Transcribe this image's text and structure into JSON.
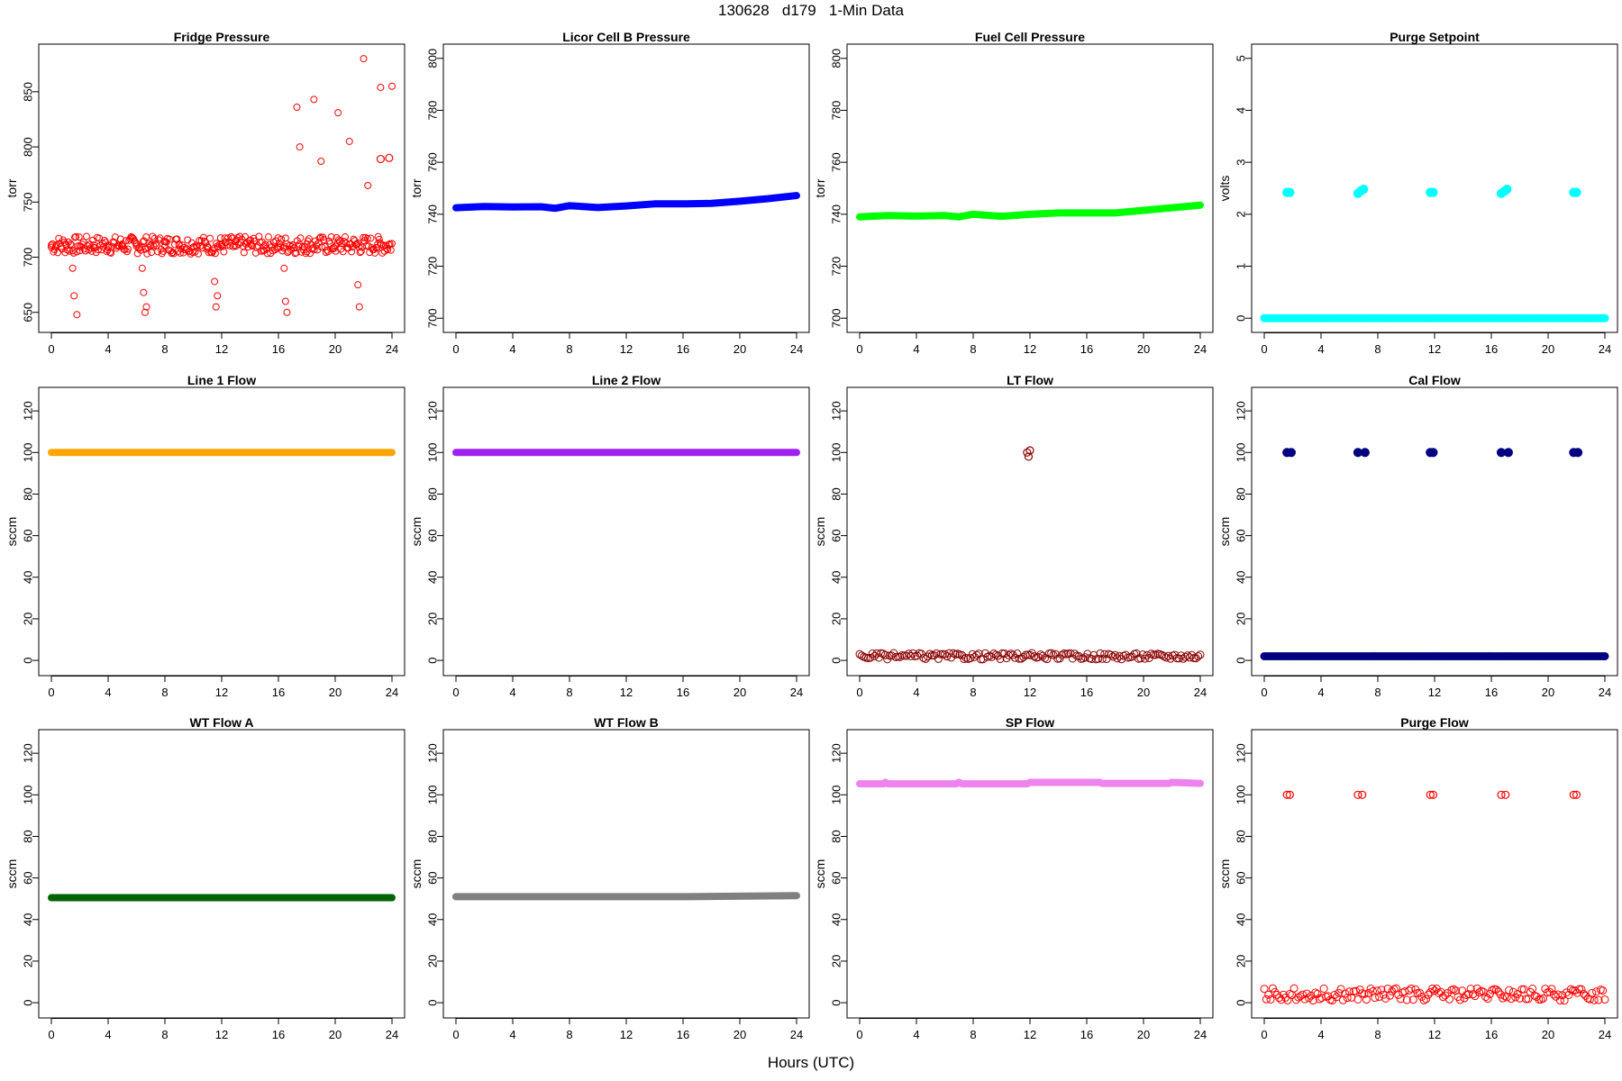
{
  "page": {
    "title": "130628   d179   1-Min Data",
    "xlabel": "Hours (UTC)"
  },
  "chart_data": [
    {
      "type": "scatter",
      "title": "Fridge Pressure",
      "ylabel": "torr",
      "xlim": [
        0,
        24
      ],
      "ylim": [
        640,
        885
      ],
      "xticks": [
        0,
        4,
        8,
        12,
        16,
        20,
        24
      ],
      "yticks": [
        650,
        700,
        750,
        800,
        850
      ],
      "color": "#FF0000",
      "marker": "open",
      "series": [
        {
          "x": [
            0,
            1,
            1.5,
            1.6,
            1.8,
            2,
            3,
            4,
            5,
            6,
            6.4,
            6.5,
            6.6,
            6.7,
            7,
            8,
            9,
            10,
            11,
            11.5,
            11.6,
            11.7,
            12,
            13,
            14,
            15,
            16,
            16.4,
            16.5,
            16.6,
            17,
            17.3,
            17.5,
            18,
            18.5,
            19,
            20,
            20.2,
            21,
            21.5,
            21.6,
            21.7,
            22,
            22.3,
            23,
            23.2,
            24
          ],
          "y": [
            709,
            712,
            690,
            665,
            648,
            710,
            711,
            709,
            712,
            710,
            690,
            668,
            650,
            655,
            711,
            710,
            712,
            709,
            710,
            678,
            655,
            665,
            711,
            710,
            712,
            710,
            709,
            690,
            660,
            650,
            711,
            836,
            800,
            712,
            843,
            787,
            710,
            831,
            805,
            712,
            675,
            655,
            880,
            765,
            712,
            854,
            855
          ]
        },
        {
          "x": [
            23.2,
            23.8
          ],
          "y": [
            789,
            790
          ]
        }
      ]
    },
    {
      "type": "line",
      "title": "Licor Cell B Pressure",
      "ylabel": "torr",
      "xlim": [
        0,
        24
      ],
      "ylim": [
        698,
        802
      ],
      "xticks": [
        0,
        4,
        8,
        12,
        16,
        20,
        24
      ],
      "yticks": [
        700,
        720,
        740,
        760,
        780,
        800
      ],
      "color": "#0000FF",
      "series": [
        {
          "x": [
            0,
            2,
            4,
            6,
            7,
            8,
            10,
            12,
            14,
            16,
            18,
            20,
            22,
            24
          ],
          "y": [
            742.5,
            743,
            742.8,
            742.9,
            742.3,
            743.3,
            742.6,
            743.2,
            744,
            744,
            744.2,
            745,
            746,
            747.2
          ]
        }
      ]
    },
    {
      "type": "line",
      "title": "Fuel Cell Pressure",
      "ylabel": "torr",
      "xlim": [
        0,
        24
      ],
      "ylim": [
        698,
        802
      ],
      "xticks": [
        0,
        4,
        8,
        12,
        16,
        20,
        24
      ],
      "yticks": [
        700,
        720,
        740,
        760,
        780,
        800
      ],
      "color": "#00FF00",
      "series": [
        {
          "x": [
            0,
            2,
            4,
            6,
            7,
            8,
            10,
            12,
            14,
            16,
            18,
            20,
            22,
            24
          ],
          "y": [
            739,
            739.5,
            739.3,
            739.5,
            739,
            740,
            739.2,
            740,
            740.5,
            740.5,
            740.5,
            741.5,
            742.5,
            743.5
          ]
        }
      ]
    },
    {
      "type": "scatter",
      "title": "Purge Setpoint",
      "ylabel": "volts",
      "xlim": [
        0,
        24
      ],
      "ylim": [
        -0.1,
        5.1
      ],
      "xticks": [
        0,
        4,
        8,
        12,
        16,
        20,
        24
      ],
      "yticks": [
        0,
        1,
        2,
        3,
        4,
        5
      ],
      "color": "#00FFFF",
      "series": [
        {
          "x": [
            0,
            24
          ],
          "y": [
            0,
            0
          ]
        },
        {
          "x": [
            1.6,
            1.8,
            6.6,
            6.8,
            7,
            11.7,
            11.9,
            16.7,
            16.9,
            17.1,
            21.8,
            22
          ],
          "y": [
            2.42,
            2.42,
            2.4,
            2.45,
            2.48,
            2.42,
            2.42,
            2.4,
            2.44,
            2.48,
            2.42,
            2.42
          ]
        }
      ]
    },
    {
      "type": "line",
      "title": "Line 1 Flow",
      "ylabel": "sccm",
      "xlim": [
        0,
        24
      ],
      "ylim": [
        -3,
        127
      ],
      "xticks": [
        0,
        4,
        8,
        12,
        16,
        20,
        24
      ],
      "yticks": [
        0,
        20,
        40,
        60,
        80,
        100,
        120
      ],
      "color": "#FFA500",
      "series": [
        {
          "x": [
            0,
            24
          ],
          "y": [
            100,
            100
          ]
        }
      ]
    },
    {
      "type": "line",
      "title": "Line 2 Flow",
      "ylabel": "sccm",
      "xlim": [
        0,
        24
      ],
      "ylim": [
        -3,
        127
      ],
      "xticks": [
        0,
        4,
        8,
        12,
        16,
        20,
        24
      ],
      "yticks": [
        0,
        20,
        40,
        60,
        80,
        100,
        120
      ],
      "color": "#A020F0",
      "series": [
        {
          "x": [
            0,
            24
          ],
          "y": [
            100,
            100
          ]
        }
      ]
    },
    {
      "type": "scatter",
      "title": "LT Flow",
      "ylabel": "sccm",
      "xlim": [
        0,
        24
      ],
      "ylim": [
        -3,
        127
      ],
      "xticks": [
        0,
        4,
        8,
        12,
        16,
        20,
        24
      ],
      "yticks": [
        0,
        20,
        40,
        60,
        80,
        100,
        120
      ],
      "color": "#8B0000",
      "marker": "open",
      "series": [
        {
          "x": [
            0,
            24
          ],
          "y": [
            2,
            2
          ]
        },
        {
          "x": [
            11.8,
            11.9,
            12
          ],
          "y": [
            100,
            98,
            101
          ]
        }
      ]
    },
    {
      "type": "scatter",
      "title": "Cal Flow",
      "ylabel": "sccm",
      "xlim": [
        0,
        24
      ],
      "ylim": [
        -3,
        127
      ],
      "xticks": [
        0,
        4,
        8,
        12,
        16,
        20,
        24
      ],
      "yticks": [
        0,
        20,
        40,
        60,
        80,
        100,
        120
      ],
      "color": "#000080",
      "series": [
        {
          "x": [
            0,
            24
          ],
          "y": [
            2,
            2
          ]
        },
        {
          "x": [
            1.6,
            1.9,
            6.6,
            7.1,
            11.7,
            11.9,
            16.7,
            17.2,
            21.8,
            22.1
          ],
          "y": [
            100,
            100,
            100,
            100,
            100,
            100,
            100,
            100,
            100,
            100
          ]
        }
      ]
    },
    {
      "type": "line",
      "title": "WT Flow A",
      "ylabel": "sccm",
      "xlim": [
        0,
        24
      ],
      "ylim": [
        -3,
        127
      ],
      "xticks": [
        0,
        4,
        8,
        12,
        16,
        20,
        24
      ],
      "yticks": [
        0,
        20,
        40,
        60,
        80,
        100,
        120
      ],
      "color": "#006400",
      "series": [
        {
          "x": [
            0,
            24
          ],
          "y": [
            50.5,
            50.5
          ]
        }
      ]
    },
    {
      "type": "line",
      "title": "WT Flow B",
      "ylabel": "sccm",
      "xlim": [
        0,
        24
      ],
      "ylim": [
        -3,
        127
      ],
      "xticks": [
        0,
        4,
        8,
        12,
        16,
        20,
        24
      ],
      "yticks": [
        0,
        20,
        40,
        60,
        80,
        100,
        120
      ],
      "color": "#808080",
      "series": [
        {
          "x": [
            0,
            16,
            24
          ],
          "y": [
            51,
            51,
            51.5
          ]
        }
      ]
    },
    {
      "type": "line",
      "title": "SP Flow",
      "ylabel": "sccm",
      "xlim": [
        0,
        24
      ],
      "ylim": [
        -3,
        127
      ],
      "xticks": [
        0,
        4,
        8,
        12,
        16,
        20,
        24
      ],
      "yticks": [
        0,
        20,
        40,
        60,
        80,
        100,
        120
      ],
      "color": "#EE82EE",
      "series": [
        {
          "x": [
            0,
            1.7,
            1.8,
            2,
            6.8,
            7,
            7.2,
            11.8,
            12,
            16.9,
            17.1,
            21.8,
            22,
            24
          ],
          "y": [
            105.3,
            105.3,
            106,
            105.3,
            105.3,
            106,
            105.3,
            105.3,
            106,
            106,
            105.5,
            105.5,
            106,
            105.5
          ]
        }
      ]
    },
    {
      "type": "scatter",
      "title": "Purge Flow",
      "ylabel": "sccm",
      "xlim": [
        0,
        24
      ],
      "ylim": [
        -3,
        127
      ],
      "xticks": [
        0,
        4,
        8,
        12,
        16,
        20,
        24
      ],
      "yticks": [
        0,
        20,
        40,
        60,
        80,
        100,
        120
      ],
      "color": "#FF0000",
      "marker": "open",
      "series": [
        {
          "x": [
            0,
            24
          ],
          "y": [
            4,
            4
          ]
        },
        {
          "x": [
            1.6,
            1.8,
            6.6,
            6.9,
            11.7,
            11.9,
            16.7,
            17,
            21.8,
            22
          ],
          "y": [
            100,
            100,
            100,
            100,
            100,
            100,
            100,
            100,
            100,
            100
          ]
        }
      ]
    }
  ]
}
